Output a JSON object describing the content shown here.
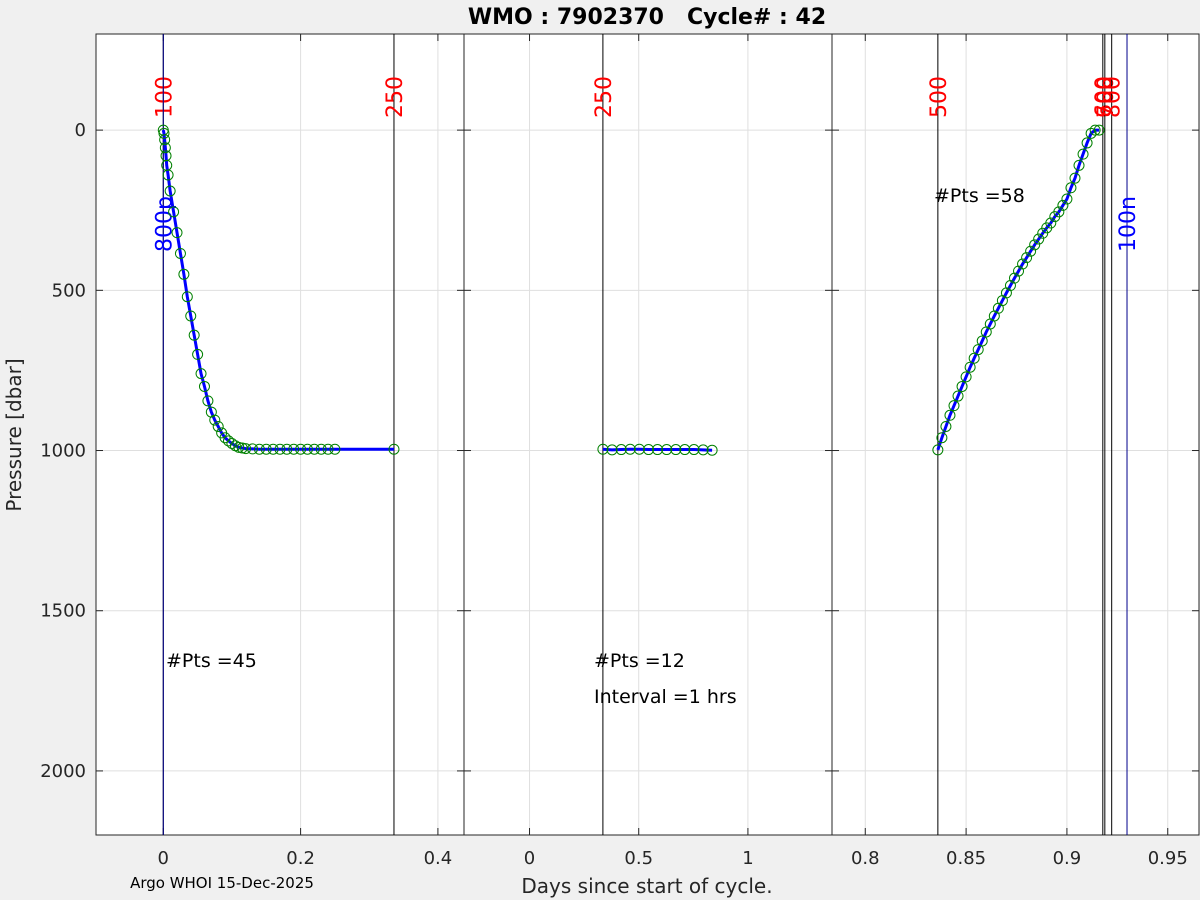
{
  "chart_data": {
    "type": "line",
    "title": "WMO : 7902370   Cycle# : 42",
    "xlabel": "Days since start of cycle.",
    "ylabel": "Pressure [dbar]",
    "footer": "Argo WHOI 15-Dec-2025",
    "y_axis": {
      "reversed": true,
      "ylim": [
        -300,
        2200
      ],
      "ticks": [
        0,
        500,
        1000,
        1500,
        2000
      ]
    },
    "grid": true,
    "panels": [
      {
        "name": "descent",
        "xlim": [
          -0.098,
          0.438
        ],
        "xticks": [
          0,
          0.2,
          0.4
        ],
        "xtick_labels": [
          "0",
          "0.2",
          "0.4"
        ],
        "annotations": [
          "#Pts =45"
        ],
        "markers": [
          {
            "x": 0.0,
            "label": "100",
            "color": "#ff0000"
          },
          {
            "x": 0.336,
            "label": "250",
            "color": "#ff0000"
          },
          {
            "x": 0.0,
            "label": "800p",
            "color": "#0000ff"
          }
        ],
        "series": [
          {
            "x": [
              0,
              0.001,
              0.002,
              0.003,
              0.004,
              0.005,
              0.007,
              0.01,
              0.015,
              0.02,
              0.025,
              0.03,
              0.035,
              0.04,
              0.045,
              0.05,
              0.055,
              0.06,
              0.065,
              0.07,
              0.075,
              0.08,
              0.085,
              0.09,
              0.095,
              0.1,
              0.105,
              0.11,
              0.115,
              0.12,
              0.13,
              0.14,
              0.15,
              0.16,
              0.17,
              0.18,
              0.19,
              0.2,
              0.21,
              0.22,
              0.23,
              0.24,
              0.25,
              0.336
            ],
            "y": [
              0,
              10,
              30,
              55,
              80,
              110,
              140,
              190,
              255,
              320,
              385,
              450,
              520,
              580,
              640,
              700,
              760,
              800,
              845,
              880,
              905,
              925,
              945,
              960,
              970,
              978,
              985,
              990,
              992,
              994,
              995,
              996,
              996,
              996,
              996,
              996,
              996,
              996,
              996,
              996,
              996,
              996,
              996,
              996
            ]
          }
        ]
      },
      {
        "name": "drift",
        "xlim": [
          -0.3,
          1.385
        ],
        "xticks": [
          0,
          0.5,
          1
        ],
        "xtick_labels": [
          "0",
          "0.5",
          "1"
        ],
        "annotations": [
          "#Pts =12",
          "Interval =1 hrs"
        ],
        "markers": [
          {
            "x": 0.336,
            "label": "250",
            "color": "#ff0000"
          }
        ],
        "series": [
          {
            "x": [
              0.336,
              0.378,
              0.42,
              0.461,
              0.503,
              0.545,
              0.586,
              0.628,
              0.67,
              0.711,
              0.753,
              0.795,
              0.836
            ],
            "y": [
              996,
              998,
              997,
              996,
              996,
              997,
              997,
              997,
              997,
              997,
              997,
              998,
              999
            ]
          }
        ]
      },
      {
        "name": "ascent",
        "xlim": [
          0.7835,
          0.9655
        ],
        "xticks": [
          0.8,
          0.85,
          0.9,
          0.95
        ],
        "xtick_labels": [
          "0.8",
          "0.85",
          "0.9",
          "0.95"
        ],
        "annotations": [
          "#Pts =58"
        ],
        "markers": [
          {
            "x": 0.836,
            "label": "500",
            "color": "#ff0000"
          },
          {
            "x": 0.9178,
            "label": "600",
            "color": "#ff0000"
          },
          {
            "x": 0.9188,
            "label": "700",
            "color": "#ff0000"
          },
          {
            "x": 0.9222,
            "label": "800",
            "color": "#ff0000"
          },
          {
            "x": 0.9298,
            "label": "100n",
            "color": "#0000ff"
          }
        ],
        "series": [
          {
            "x": [
              0.836,
              0.838,
              0.84,
              0.842,
              0.844,
              0.846,
              0.848,
              0.85,
              0.852,
              0.854,
              0.856,
              0.858,
              0.86,
              0.862,
              0.864,
              0.866,
              0.868,
              0.87,
              0.872,
              0.874,
              0.876,
              0.878,
              0.88,
              0.882,
              0.884,
              0.886,
              0.888,
              0.89,
              0.892,
              0.894,
              0.896,
              0.898,
              0.9,
              0.902,
              0.904,
              0.906,
              0.908,
              0.91,
              0.912,
              0.914,
              0.916
            ],
            "y": [
              998,
              960,
              925,
              890,
              860,
              830,
              800,
              770,
              740,
              712,
              685,
              658,
              630,
              605,
              580,
              556,
              532,
              508,
              485,
              462,
              440,
              418,
              398,
              378,
              358,
              340,
              322,
              305,
              290,
              270,
              255,
              235,
              215,
              180,
              150,
              110,
              75,
              40,
              10,
              0,
              0
            ]
          }
        ]
      }
    ]
  }
}
